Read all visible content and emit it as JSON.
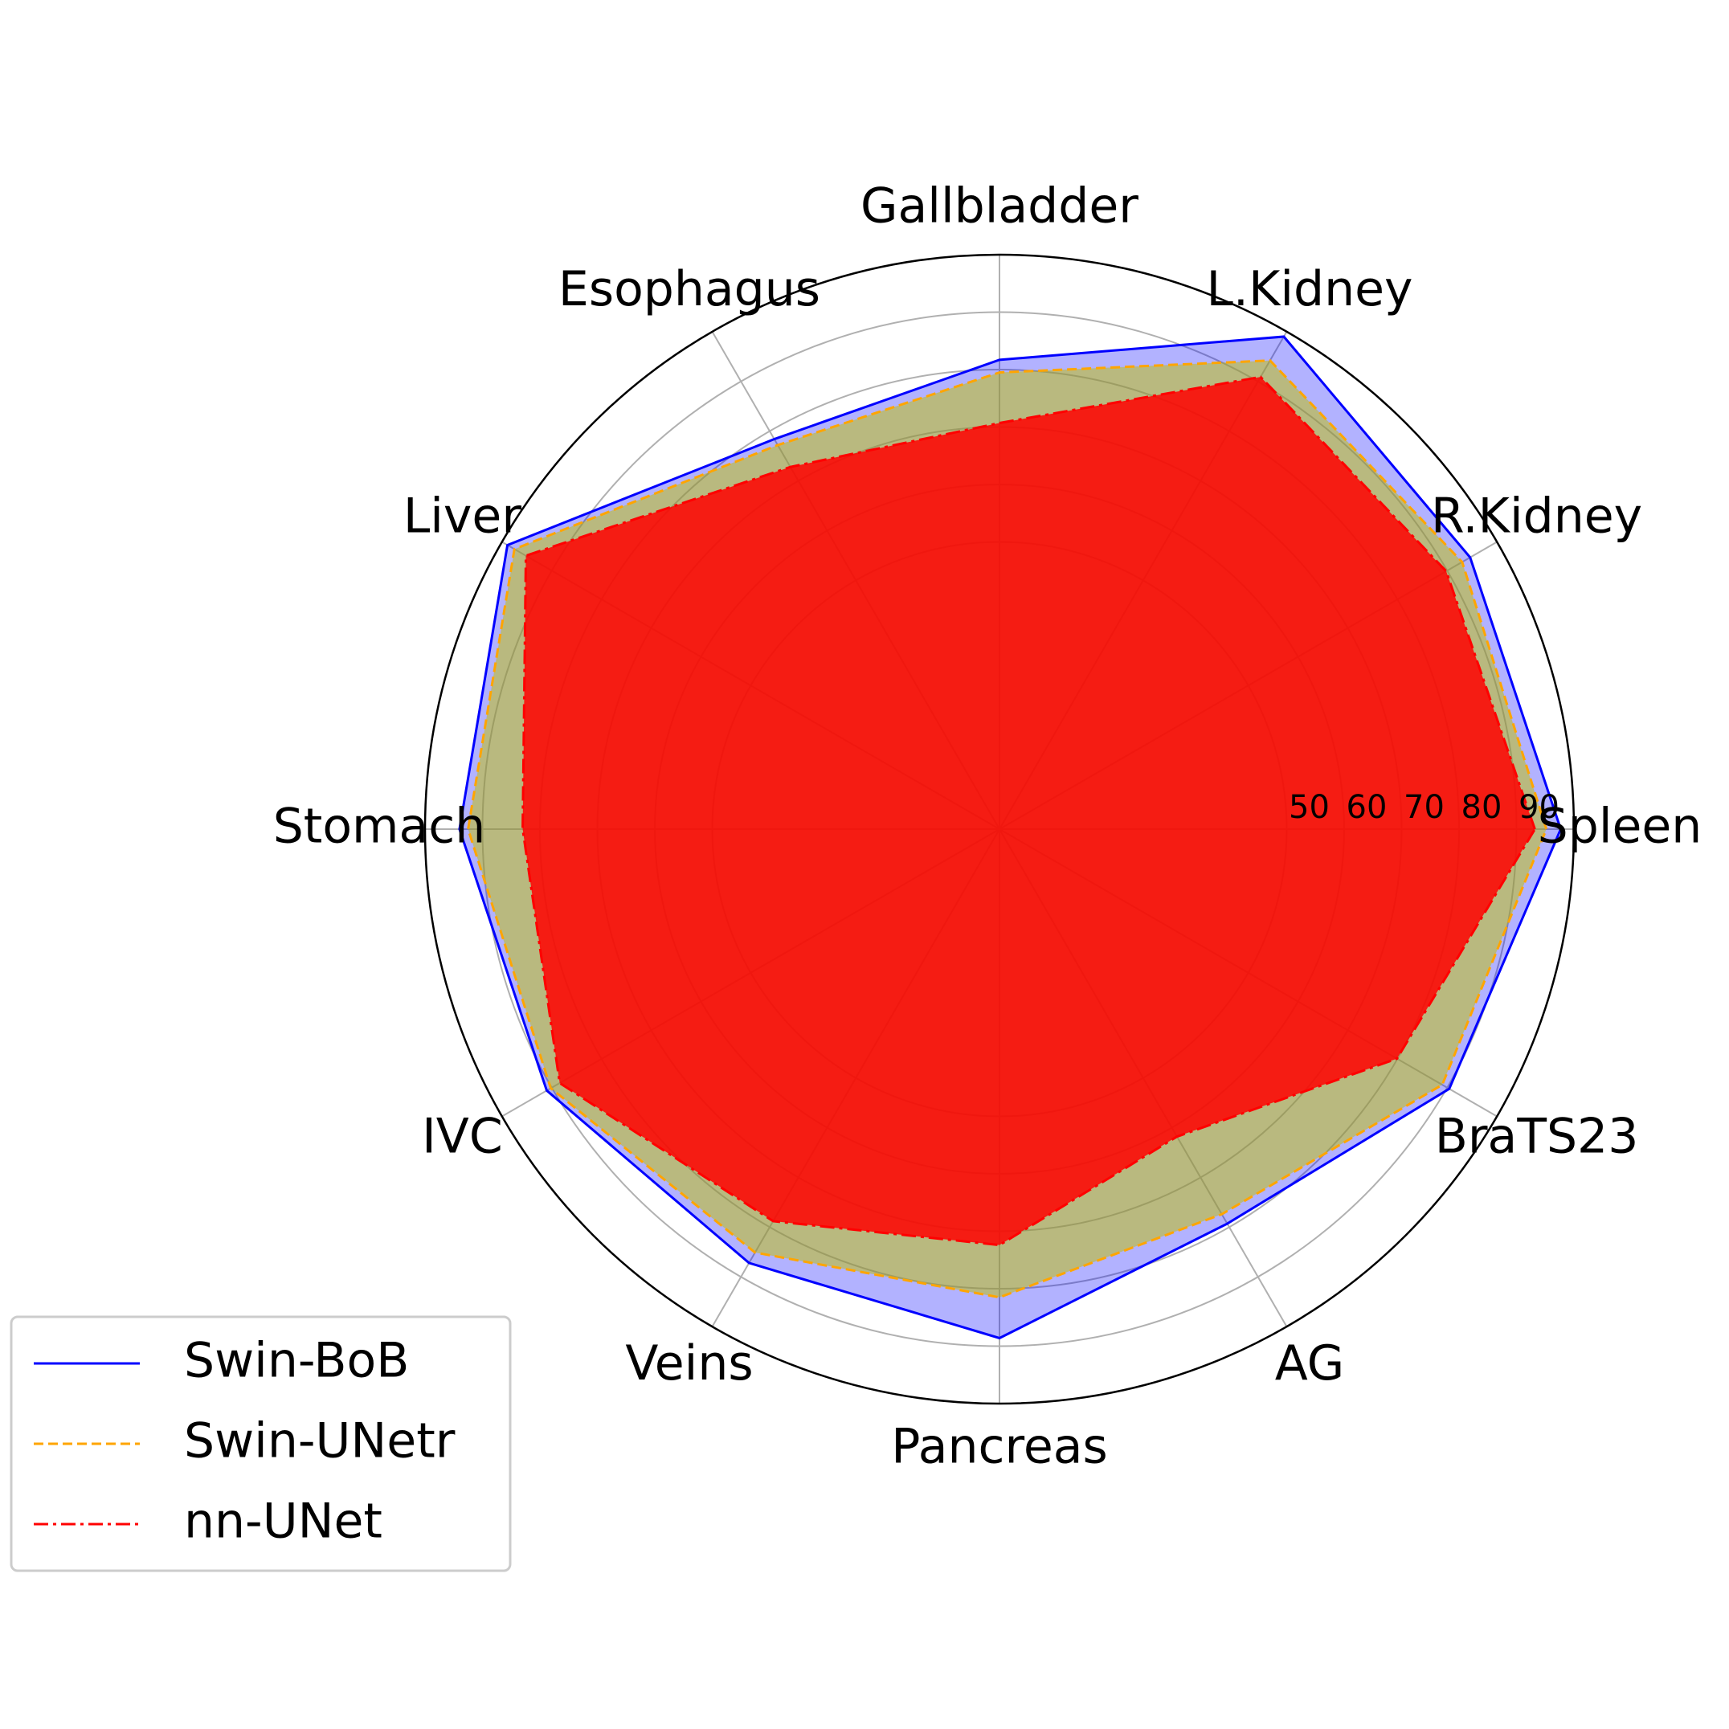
{
  "chart_data": {
    "type": "radar",
    "categories": [
      "Spleen",
      "R.Kidney",
      "L.Kidney",
      "Gallbladder",
      "Esophagus",
      "Liver",
      "Stomach",
      "IVC",
      "Veins",
      "Pancreas",
      "AG",
      "BraTS23"
    ],
    "series": [
      {
        "name": "Swin-BoB",
        "color": "#0000ff",
        "fill": "#0000ff",
        "linestyle": "solid",
        "values": [
          97.7,
          94.6,
          99.0,
          81.7,
          78.4,
          98.9,
          94.0,
          91.0,
          87.2,
          88.6,
          79.3,
          90.4
        ]
      },
      {
        "name": "Swin-UNetr",
        "color": "#ffa500",
        "fill": "#bfbf00",
        "linestyle": "dashed",
        "values": [
          95.2,
          93.0,
          94.2,
          79.5,
          77.2,
          97.5,
          92.5,
          90.2,
          85.1,
          81.5,
          77.4,
          89.0
        ]
      },
      {
        "name": "nn-UNet",
        "color": "#ff0000",
        "fill": "#ff0000",
        "linestyle": "dashdot",
        "values": [
          93.2,
          89.8,
          90.9,
          70.7,
          72.8,
          95.2,
          83.0,
          88.4,
          78.8,
          72.4,
          61.8,
          79.9
        ]
      }
    ],
    "ylim": [
      0,
      100
    ],
    "yticks": [
      50,
      60,
      70,
      80,
      90
    ],
    "grid": true,
    "legend": "lower left"
  }
}
